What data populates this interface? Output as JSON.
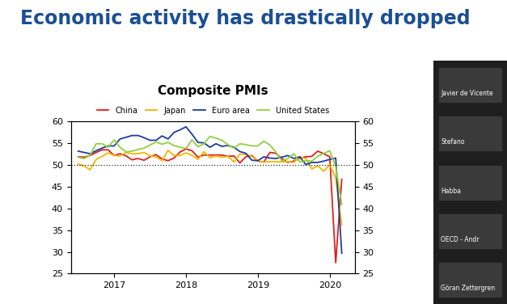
{
  "chart_data": {
    "type": "line",
    "title": "Economic activity has drastically dropped",
    "subtitle": "Composite PMIs",
    "annotations": [
      "Javier de Vicente",
      "Stefano",
      "Habba",
      "OECD - Andr",
      "Göran Zettergren"
    ],
    "x": [
      2016.5,
      2016.583,
      2016.667,
      2016.75,
      2016.833,
      2016.917,
      2017.0,
      2017.083,
      2017.167,
      2017.25,
      2017.333,
      2017.417,
      2017.5,
      2017.583,
      2017.667,
      2017.75,
      2017.833,
      2017.917,
      2018.0,
      2018.083,
      2018.167,
      2018.25,
      2018.333,
      2018.417,
      2018.5,
      2018.583,
      2018.667,
      2018.75,
      2018.833,
      2018.917,
      2019.0,
      2019.083,
      2019.167,
      2019.25,
      2019.333,
      2019.417,
      2019.5,
      2019.583,
      2019.667,
      2019.75,
      2019.833,
      2019.917,
      2020.0,
      2020.083,
      2020.167
    ],
    "series": [
      {
        "name": "China",
        "color": "#e0201b",
        "values": [
          51.9,
          51.8,
          52.2,
          52.9,
          53.5,
          53.5,
          52.2,
          52.6,
          52.1,
          51.2,
          51.5,
          51.1,
          51.9,
          52.4,
          51.4,
          51.0,
          51.6,
          53.0,
          53.7,
          53.3,
          51.8,
          52.3,
          52.3,
          52.3,
          52.3,
          52.0,
          52.1,
          50.5,
          51.9,
          52.2,
          50.9,
          50.7,
          52.9,
          52.7,
          51.5,
          50.6,
          50.9,
          51.6,
          51.9,
          52.0,
          53.2,
          52.6,
          51.9,
          27.5,
          46.7
        ]
      },
      {
        "name": "Japan",
        "color": "#f4b400",
        "values": [
          50.2,
          49.8,
          48.9,
          51.3,
          52.0,
          52.8,
          52.2,
          52.1,
          52.9,
          52.6,
          52.6,
          52.9,
          52.1,
          51.9,
          51.0,
          53.4,
          52.2,
          52.2,
          52.8,
          52.2,
          51.3,
          53.1,
          51.7,
          52.1,
          51.8,
          52.0,
          50.7,
          52.5,
          52.4,
          52.0,
          50.9,
          50.7,
          50.8,
          50.8,
          50.7,
          50.8,
          50.6,
          51.9,
          51.5,
          49.1,
          49.8,
          48.6,
          50.1,
          47.0,
          36.2
        ]
      },
      {
        "name": "Euro area",
        "color": "#1f3c9e",
        "values": [
          53.2,
          52.9,
          52.6,
          53.3,
          53.9,
          54.4,
          54.4,
          56.0,
          56.4,
          56.8,
          56.8,
          56.3,
          55.7,
          55.7,
          56.7,
          56.0,
          57.5,
          58.1,
          58.8,
          57.1,
          55.2,
          55.1,
          54.1,
          54.9,
          54.3,
          54.5,
          54.1,
          53.1,
          52.7,
          51.1,
          51.0,
          51.9,
          51.6,
          51.5,
          51.8,
          52.2,
          51.5,
          51.9,
          50.1,
          50.6,
          50.6,
          50.9,
          51.3,
          51.6,
          29.7
        ]
      },
      {
        "name": "United States",
        "color": "#8fd13f",
        "values": [
          51.8,
          51.5,
          52.3,
          54.9,
          54.9,
          54.1,
          55.8,
          54.1,
          53.0,
          53.2,
          53.6,
          53.9,
          54.6,
          55.3,
          54.8,
          55.2,
          54.5,
          54.1,
          53.8,
          55.8,
          54.2,
          54.9,
          56.6,
          56.2,
          55.7,
          54.7,
          53.9,
          54.9,
          54.7,
          54.4,
          54.4,
          55.5,
          54.6,
          53.0,
          50.9,
          51.5,
          52.6,
          50.7,
          51.0,
          50.9,
          52.0,
          52.7,
          53.3,
          49.6,
          40.9
        ]
      }
    ],
    "reference_line": 50,
    "xlim": [
      2016.4,
      2020.35
    ],
    "xticks": [
      2017,
      2018,
      2019,
      2020
    ],
    "ylim": [
      25,
      60
    ],
    "yticks": [
      25,
      30,
      35,
      40,
      45,
      50,
      55,
      60
    ],
    "y2lim": [
      25,
      60
    ],
    "y2ticks": [
      25,
      30,
      35,
      40,
      45,
      50,
      55,
      60
    ],
    "legend": "top",
    "grid": false
  }
}
